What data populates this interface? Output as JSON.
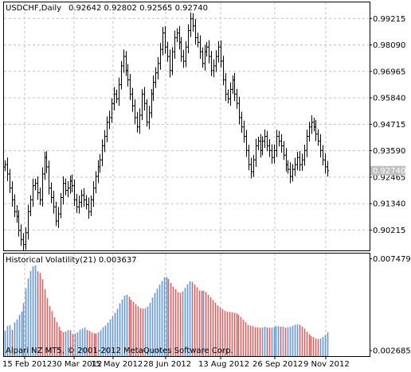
{
  "header": {
    "symbol_label": "USDCHF,Daily",
    "ohlc_label": "0.92642 0.92802 0.92565 0.92740"
  },
  "indicator": {
    "label": "Historical Volatility(21) 0.003637"
  },
  "footer": {
    "copyright": "Alpari NZ MT5, © 2001-2012 MetaQuotes Software Corp."
  },
  "current_price_label": "0.92740",
  "colors": {
    "background": "#ffffff",
    "grid": "#c0c0c0",
    "price_bars": "#000000",
    "price_tag_bg": "#c0c0c0",
    "price_tag_text": "#ffffff",
    "volatility_blue": "#6699cc",
    "volatility_red": "#cc6666"
  },
  "chart_data": [
    {
      "type": "ohlc",
      "title": "USDCHF,Daily",
      "y_ticks": [
        "0.99215",
        "0.98090",
        "0.96965",
        "0.95840",
        "0.94715",
        "0.93590",
        "0.92465",
        "0.91340",
        "0.90215"
      ],
      "ylim": [
        0.8935,
        0.999
      ],
      "x_ticks": [
        "15 Feb 2012",
        "30 Mar 2012",
        "15 May 2012",
        "28 Jun 2012",
        "13 Aug 2012",
        "26 Sep 2012",
        "9 Nov 2012"
      ],
      "closes": [
        0.93,
        0.926,
        0.92,
        0.915,
        0.91,
        0.908,
        0.902,
        0.898,
        0.896,
        0.901,
        0.91,
        0.915,
        0.921,
        0.922,
        0.918,
        0.915,
        0.926,
        0.933,
        0.929,
        0.92,
        0.916,
        0.912,
        0.906,
        0.909,
        0.916,
        0.922,
        0.919,
        0.92,
        0.923,
        0.921,
        0.915,
        0.912,
        0.914,
        0.917,
        0.915,
        0.913,
        0.91,
        0.915,
        0.92,
        0.925,
        0.929,
        0.932,
        0.938,
        0.942,
        0.948,
        0.95,
        0.956,
        0.96,
        0.958,
        0.964,
        0.972,
        0.976,
        0.97,
        0.966,
        0.96,
        0.955,
        0.95,
        0.946,
        0.951,
        0.96,
        0.956,
        0.948,
        0.952,
        0.96,
        0.965,
        0.969,
        0.973,
        0.979,
        0.986,
        0.98,
        0.976,
        0.97,
        0.978,
        0.984,
        0.986,
        0.982,
        0.976,
        0.974,
        0.98,
        0.987,
        0.992,
        0.989,
        0.984,
        0.982,
        0.978,
        0.973,
        0.978,
        0.98,
        0.976,
        0.97,
        0.972,
        0.976,
        0.98,
        0.974,
        0.966,
        0.96,
        0.958,
        0.962,
        0.966,
        0.96,
        0.956,
        0.95,
        0.946,
        0.942,
        0.936,
        0.93,
        0.927,
        0.932,
        0.938,
        0.94,
        0.936,
        0.94,
        0.942,
        0.938,
        0.936,
        0.933,
        0.936,
        0.942,
        0.94,
        0.938,
        0.934,
        0.93,
        0.928,
        0.925,
        0.928,
        0.93,
        0.933,
        0.93,
        0.932,
        0.936,
        0.942,
        0.946,
        0.948,
        0.946,
        0.943,
        0.94,
        0.936,
        0.932,
        0.929,
        0.9274
      ],
      "last_close": 0.9274
    },
    {
      "type": "bar",
      "title": "Historical Volatility(21) 0.003637",
      "y_ticks": [
        "0.007479",
        "0.002685"
      ],
      "ylim": [
        0.0024,
        0.00775
      ],
      "values": [
        0.00372,
        0.00397,
        0.00402,
        0.00377,
        0.00416,
        0.00431,
        0.00455,
        0.00472,
        0.00517,
        0.00593,
        0.00646,
        0.00684,
        0.00708,
        0.00713,
        0.00683,
        0.00674,
        0.00641,
        0.0059,
        0.00542,
        0.00501,
        0.00475,
        0.00442,
        0.00418,
        0.00393,
        0.00373,
        0.00365,
        0.00368,
        0.00376,
        0.00375,
        0.00355,
        0.00359,
        0.00364,
        0.00378,
        0.00383,
        0.00389,
        0.00376,
        0.00372,
        0.00363,
        0.00359,
        0.00358,
        0.00364,
        0.00375,
        0.00391,
        0.004,
        0.00415,
        0.00432,
        0.00449,
        0.00466,
        0.00487,
        0.00515,
        0.00536,
        0.00555,
        0.0056,
        0.0055,
        0.00534,
        0.00523,
        0.0051,
        0.00499,
        0.0049,
        0.00488,
        0.0049,
        0.00499,
        0.00518,
        0.00546,
        0.0057,
        0.00592,
        0.00613,
        0.00632,
        0.0065,
        0.00652,
        0.00642,
        0.00622,
        0.00602,
        0.00589,
        0.00574,
        0.0057,
        0.00578,
        0.00596,
        0.00615,
        0.0063,
        0.00628,
        0.00614,
        0.00599,
        0.00583,
        0.00581,
        0.00582,
        0.00575,
        0.0056,
        0.00547,
        0.00533,
        0.00519,
        0.00504,
        0.00493,
        0.00485,
        0.00476,
        0.00472,
        0.00471,
        0.00469,
        0.00466,
        0.00463,
        0.00455,
        0.00444,
        0.0043,
        0.00417,
        0.00403,
        0.00399,
        0.00397,
        0.00391,
        0.0039,
        0.00388,
        0.00389,
        0.00393,
        0.00389,
        0.00388,
        0.0039,
        0.00391,
        0.00396,
        0.00396,
        0.00394,
        0.00394,
        0.00388,
        0.00391,
        0.00392,
        0.00398,
        0.00404,
        0.00405,
        0.00403,
        0.00394,
        0.00383,
        0.00367,
        0.00355,
        0.00345,
        0.00339,
        0.00332,
        0.00329,
        0.00332,
        0.00341,
        0.0035,
        0.00364
      ],
      "last_value": 0.003637
    }
  ]
}
